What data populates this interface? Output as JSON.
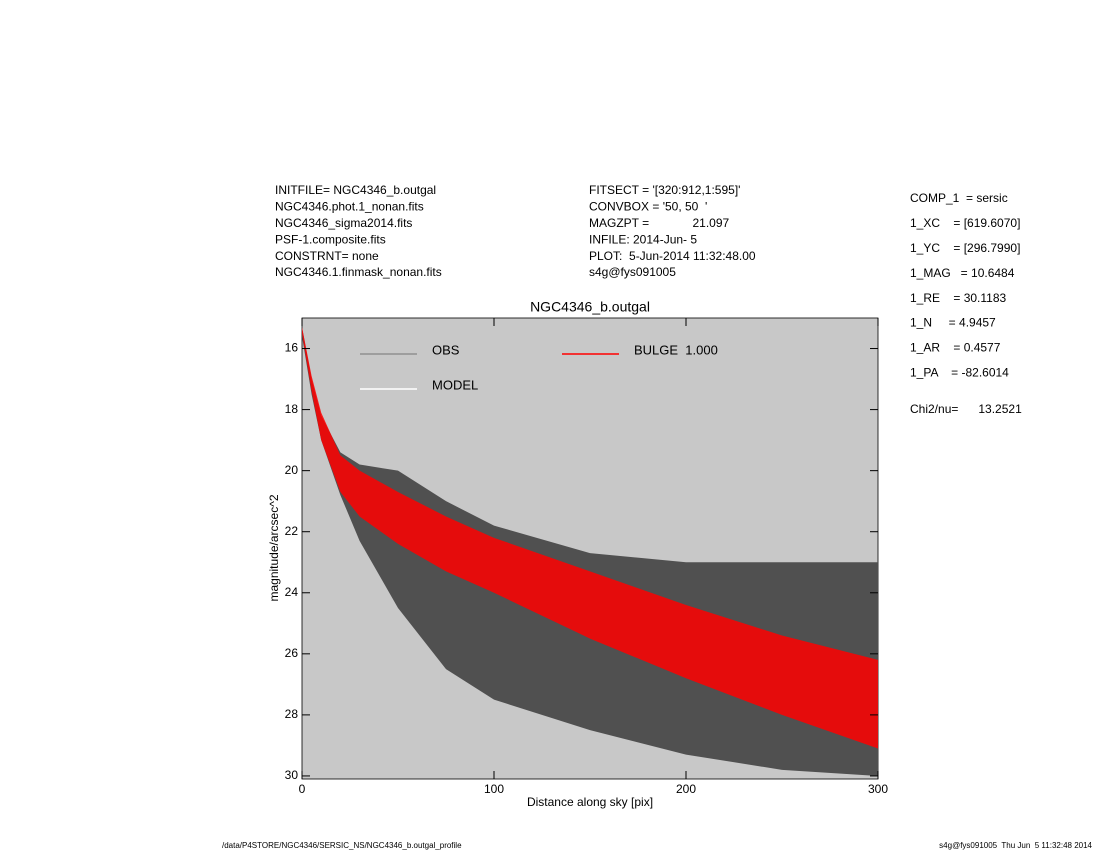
{
  "header_left": [
    "INITFILE= NGC4346_b.outgal",
    "NGC4346.phot.1_nonan.fits",
    "NGC4346_sigma2014.fits",
    "PSF-1.composite.fits",
    "CONSTRNT= none",
    "NGC4346.1.finmask_nonan.fits"
  ],
  "header_middle": [
    "FITSECT = '[320:912,1:595]'",
    "CONVBOX = '50, 50  '",
    "MAGZPT =             21.097",
    "INFILE: 2014-Jun- 5",
    "PLOT:  5-Jun-2014 11:32:48.00",
    "s4g@fys091005"
  ],
  "parameters": [
    "COMP_1  = sersic",
    "1_XC    = [619.6070]",
    "1_YC    = [296.7990]",
    "1_MAG   = 10.6484",
    "1_RE    = 30.1183",
    "1_N     = 4.9457",
    "1_AR    = 0.4577",
    "1_PA    = -82.6014"
  ],
  "chi2": "Chi2/nu=      13.2521",
  "footer_left": "/data/P4STORE/NGC4346/SERSIC_NS/NGC4346_b.outgal_profile",
  "footer_right": "s4g@fys091005  Thu Jun  5 11:32:48 2014",
  "chart_data": {
    "type": "band",
    "title": "NGC4346_b.outgal",
    "x_label": "Distance along sky [pix]",
    "y_label": "magnitude/arcsec^2",
    "x": [
      0,
      5,
      10,
      20,
      30,
      50,
      75,
      100,
      150,
      200,
      250,
      300
    ],
    "series": [
      {
        "color": "#505050",
        "min": [
          15.3,
          17.0,
          18.2,
          19.4,
          19.8,
          20.0,
          21.0,
          21.8,
          22.7,
          23.0,
          23.0,
          23.0
        ],
        "max": [
          15.6,
          17.5,
          19.0,
          20.8,
          22.3,
          24.5,
          26.5,
          27.5,
          28.5,
          29.3,
          29.8,
          30.0
        ]
      },
      {
        "color": "#ff0000",
        "min": [
          15.3,
          16.9,
          18.1,
          19.5,
          20.0,
          20.7,
          21.5,
          22.2,
          23.3,
          24.4,
          25.4,
          26.2
        ],
        "max": [
          15.5,
          17.4,
          19.0,
          20.7,
          21.5,
          22.4,
          23.3,
          24.0,
          25.5,
          26.8,
          28.0,
          29.1
        ]
      }
    ],
    "legend": [
      {
        "label": "OBS",
        "color": "#909090"
      },
      {
        "label": "MODEL",
        "color": "#ffffff"
      },
      {
        "label": "BULGE  1.000",
        "color": "#ff0000"
      }
    ],
    "background": "#c8c8c8",
    "xlim": [
      0,
      300
    ],
    "xticks": [
      0,
      100,
      200,
      300
    ],
    "ylim": [
      15,
      30.1
    ],
    "yticks": [
      16,
      18,
      20,
      22,
      24,
      26,
      28,
      30
    ],
    "y_inverted": true
  }
}
